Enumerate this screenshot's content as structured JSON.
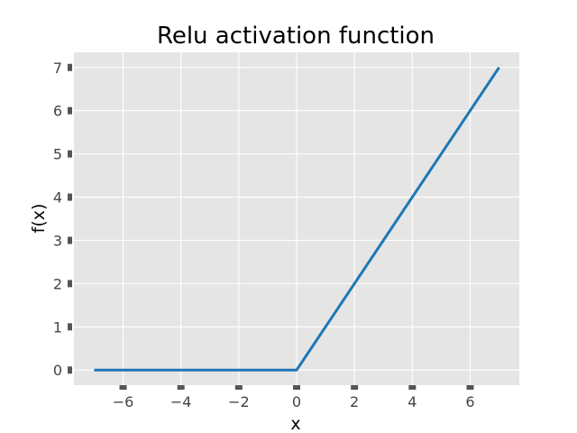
{
  "chart_data": {
    "type": "line",
    "title": "Relu activation function",
    "xlabel": "x",
    "ylabel": "f(x)",
    "xlim": [
      -7.7,
      7.7
    ],
    "ylim": [
      -0.35,
      7.35
    ],
    "xticks": [
      -6,
      -4,
      -2,
      0,
      2,
      4,
      6
    ],
    "yticks": [
      0,
      1,
      2,
      3,
      4,
      5,
      6,
      7
    ],
    "grid": true,
    "legend": "none",
    "series": [
      {
        "x": [
          -7,
          0,
          7
        ],
        "y": [
          0,
          0,
          7
        ]
      }
    ]
  },
  "colors": {
    "plot_background": "#e5e5e5",
    "grid": "#ffffff",
    "line": "#1f77b4",
    "tick_mark": "#555555",
    "tick_label": "#444444",
    "text": "#000000"
  }
}
